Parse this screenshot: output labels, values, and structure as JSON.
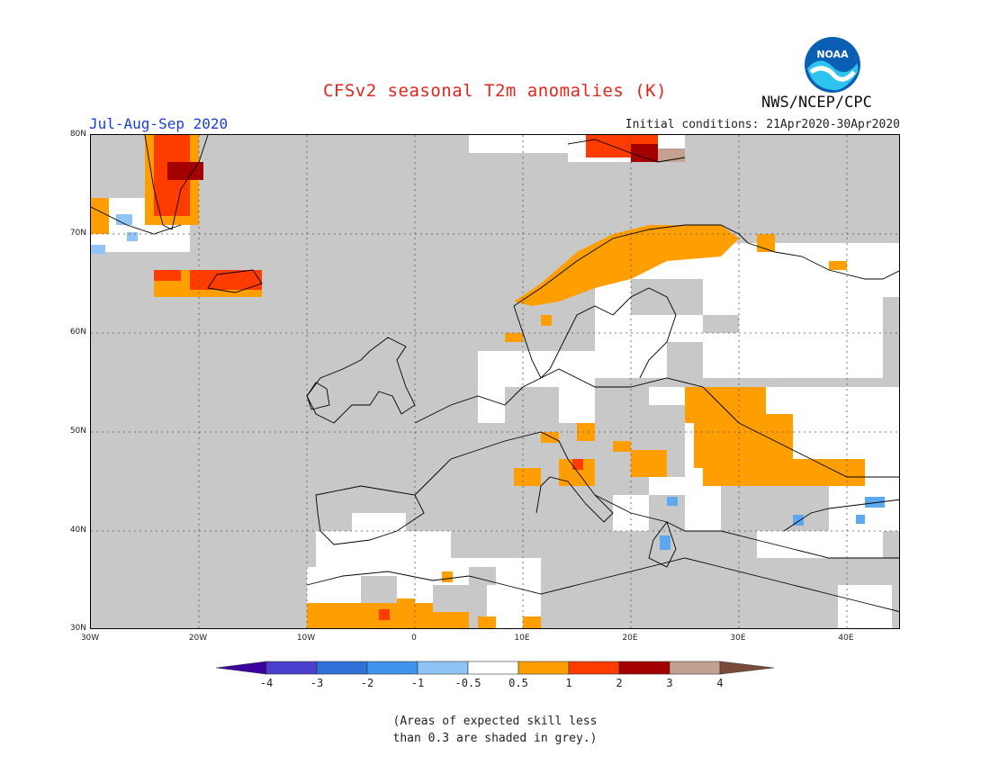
{
  "title": "CFSv2 seasonal T2m anomalies (K)",
  "season": "Jul-Aug-Sep 2020",
  "initial_conditions": "Initial conditions: 21Apr2020-30Apr2020",
  "agency": "NWS/NCEP/CPC",
  "logo_text": "NOAA",
  "note_line1": "(Areas of expected skill less",
  "note_line2": "than 0.3 are shaded in grey.)",
  "lat_labels": [
    "80N",
    "70N",
    "60N",
    "50N",
    "40N",
    "30N"
  ],
  "lon_labels": [
    "30W",
    "20W",
    "10W",
    "0",
    "10E",
    "20E",
    "30E",
    "40E"
  ],
  "colorbar": {
    "labels": [
      "-4",
      "-3",
      "-2",
      "-1",
      "-0.5",
      "0.5",
      "1",
      "2",
      "3",
      "4"
    ],
    "colors": [
      "#3c00a0",
      "#4b3fd0",
      "#2f6fd8",
      "#3f95ee",
      "#8fc4f6",
      "#ffffff",
      "#ff9e00",
      "#ff3c00",
      "#a50000",
      "#c4a090",
      "#7a4a3a"
    ]
  },
  "colors": {
    "skill_mask_grey": "#c8c8c8",
    "title_red": "#e0261c",
    "season_blue": "#1a3fd6"
  }
}
